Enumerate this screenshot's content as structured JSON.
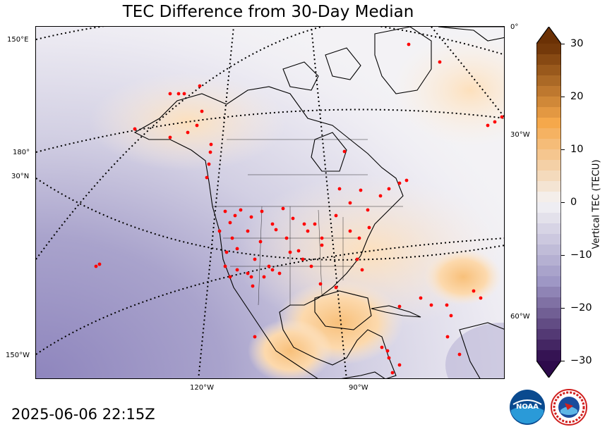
{
  "title": "TEC Difference from 30-Day Median",
  "timestamp": "2025-06-06 22:15Z",
  "map": {
    "left_labels": [
      "150°E",
      "180°",
      "30°N",
      "150°W"
    ],
    "right_labels": [
      "0°",
      "30°W",
      "60°W"
    ],
    "bottom_labels": [
      "120°W",
      "90°W"
    ],
    "station_marker_color": "#ff0000",
    "land_edge_color": "#000000"
  },
  "colorbar": {
    "label": "Vertical TEC (TECU)",
    "ticks": [
      "30",
      "20",
      "10",
      "0",
      "−10",
      "−20",
      "−30"
    ],
    "tick_values": [
      30,
      20,
      10,
      0,
      -10,
      -20,
      -30
    ],
    "range": [
      -30,
      30
    ],
    "colors": {
      "max": "#6b3105",
      "positive": "#f5a84b",
      "zero": "#f4f3f5",
      "negative": "#9e97c5",
      "min": "#2d0a4b"
    }
  },
  "logos": {
    "noaa": "NOAA",
    "nws": "NATIONAL WEATHER SERVICE"
  }
}
